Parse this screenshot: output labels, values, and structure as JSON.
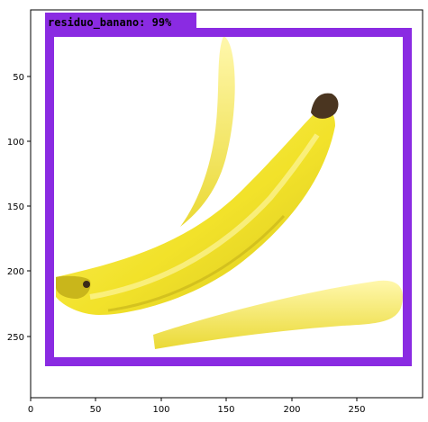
{
  "detection": {
    "label": "residuo_banano",
    "score": "99%",
    "box_color": "#8a2be2"
  },
  "axes": {
    "x_ticks": [
      "0",
      "50",
      "100",
      "150",
      "200",
      "250"
    ],
    "y_ticks": [
      "50",
      "100",
      "150",
      "200",
      "250"
    ],
    "xlim": [
      0,
      300
    ],
    "ylim": [
      300,
      0
    ]
  },
  "image": {
    "subject": "banana-peel-icon",
    "colors": {
      "peel": "#f2e22a",
      "peel_shadow": "#c9b61b",
      "stem": "#4a3520",
      "background": "#ffffff"
    }
  }
}
